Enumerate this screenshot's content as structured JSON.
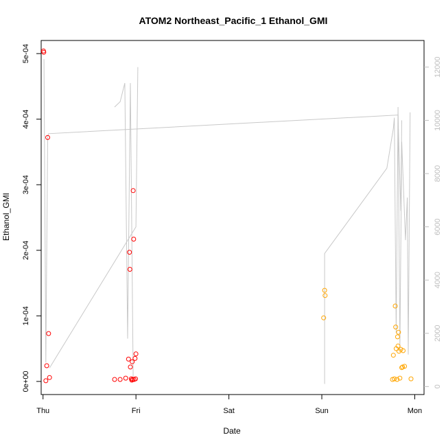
{
  "chart_data": {
    "type": "scatter",
    "title": "ATOM2 Northeast_Pacific_1 Ethanol_GMI",
    "xlabel": "Date",
    "ylabel": "Ethanol_GMI",
    "x_unit": "days since Thu 00:00",
    "xlim": [
      -0.02,
      4.1
    ],
    "ylim": [
      -2e-05,
      0.00052
    ],
    "ylim_right": [
      -300,
      13000
    ],
    "x_ticks": [
      {
        "value": 0,
        "label": "Thu"
      },
      {
        "value": 1,
        "label": "Fri"
      },
      {
        "value": 2,
        "label": "Sat"
      },
      {
        "value": 3,
        "label": "Sun"
      },
      {
        "value": 4,
        "label": "Mon"
      }
    ],
    "y_ticks": [
      {
        "value": 0,
        "label": "0e+00"
      },
      {
        "value": 0.0001,
        "label": "1e-04"
      },
      {
        "value": 0.0002,
        "label": "2e-04"
      },
      {
        "value": 0.0003,
        "label": "3e-04"
      },
      {
        "value": 0.0004,
        "label": "4e-04"
      },
      {
        "value": 0.0005,
        "label": "5e-04"
      }
    ],
    "y_right_ticks": [
      {
        "value": 0,
        "label": "0"
      },
      {
        "value": 2000,
        "label": "2000"
      },
      {
        "value": 4000,
        "label": "4000"
      },
      {
        "value": 6000,
        "label": "6000"
      },
      {
        "value": 8000,
        "label": "8000"
      },
      {
        "value": 10000,
        "label": "10000"
      },
      {
        "value": 12000,
        "label": "12000"
      }
    ],
    "colors": {
      "red": "#ff0000",
      "orange": "#ffa500",
      "line": "#c8c8c8",
      "right_axis": "#bebebe"
    },
    "series": [
      {
        "color": "red",
        "points": [
          [
            0.005,
            0.000504
          ],
          [
            0.008,
            0.000502
          ],
          [
            0.03,
            1e-06
          ],
          [
            0.04,
            2.4e-05
          ],
          [
            0.05,
            0.000372
          ],
          [
            0.06,
            7.3e-05
          ],
          [
            0.07,
            6e-06
          ],
          [
            0.77,
            3e-06
          ],
          [
            0.83,
            3e-06
          ],
          [
            0.89,
            5e-06
          ],
          [
            0.92,
            3.4e-05
          ],
          [
            0.93,
            0.000197
          ],
          [
            0.935,
            0.000171
          ],
          [
            0.94,
            2.2e-05
          ],
          [
            0.95,
            4e-06
          ],
          [
            0.955,
            2e-06
          ],
          [
            0.96,
            3e-05
          ],
          [
            0.965,
            3e-06
          ],
          [
            0.97,
            0.000291
          ],
          [
            0.975,
            0.000217
          ],
          [
            0.98,
            3e-06
          ],
          [
            0.99,
            3.5e-05
          ],
          [
            0.995,
            4e-06
          ],
          [
            1.0,
            4.2e-05
          ]
        ]
      },
      {
        "color": "orange",
        "points": [
          [
            3.02,
            9.7e-05
          ],
          [
            3.03,
            0.000139
          ],
          [
            3.035,
            0.000131
          ],
          [
            3.76,
            3e-06
          ],
          [
            3.77,
            4e-05
          ],
          [
            3.78,
            4e-06
          ],
          [
            3.79,
            0.000115
          ],
          [
            3.795,
            8.3e-05
          ],
          [
            3.8,
            5e-05
          ],
          [
            3.81,
            3e-06
          ],
          [
            3.815,
            6.8e-05
          ],
          [
            3.82,
            5.4e-05
          ],
          [
            3.825,
            7.5e-05
          ],
          [
            3.83,
            4.6e-05
          ],
          [
            3.84,
            5e-06
          ],
          [
            3.85,
            4.9e-05
          ],
          [
            3.86,
            2.1e-05
          ],
          [
            3.87,
            2.2e-05
          ],
          [
            3.875,
            4.7e-05
          ],
          [
            3.89,
            2.3e-05
          ],
          [
            3.96,
            4e-06
          ]
        ]
      },
      {
        "color": "line",
        "axis": "right",
        "segments": [
          [
            [
              0.01,
              12300
            ],
            [
              0.03,
              900
            ],
            [
              0.05,
              9400
            ],
            [
              0.06,
              9500
            ],
            [
              3.82,
              10200
            ],
            [
              3.85,
              6600
            ],
            [
              3.86,
              10000
            ]
          ],
          [
            [
              0.07,
              700
            ],
            [
              1.0,
              6000
            ],
            [
              1.02,
              12000
            ]
          ],
          [
            [
              0.77,
              10500
            ],
            [
              0.83,
              10700
            ],
            [
              0.88,
              11400
            ],
            [
              0.91,
              1800
            ],
            [
              0.94,
              11400
            ],
            [
              0.97,
              300
            ]
          ],
          [
            [
              3.03,
              100
            ],
            [
              3.03,
              5000
            ],
            [
              3.7,
              8200
            ],
            [
              3.77,
              9700
            ],
            [
              3.78,
              10100
            ],
            [
              3.8,
              2000
            ],
            [
              3.82,
              10500
            ],
            [
              3.84,
              1400
            ],
            [
              3.86,
              9200
            ],
            [
              3.9,
              5500
            ],
            [
              3.92,
              7100
            ],
            [
              3.93,
              1200
            ],
            [
              3.95,
              10300
            ]
          ]
        ]
      }
    ]
  }
}
